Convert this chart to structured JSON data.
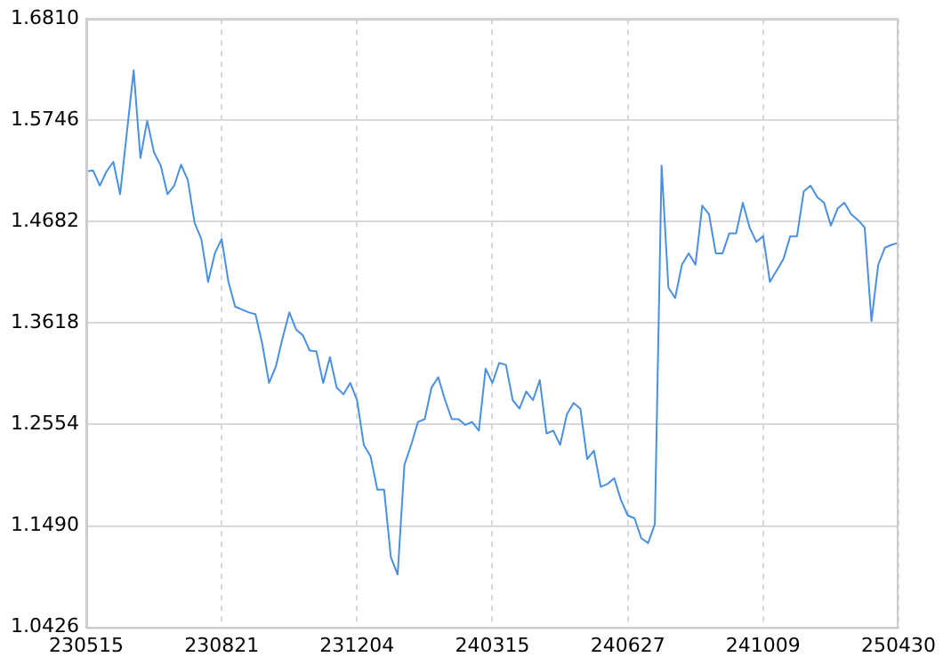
{
  "chart_data": {
    "type": "line",
    "categories": [
      "230515",
      null,
      null,
      null,
      null,
      null,
      null,
      null,
      null,
      null,
      null,
      null,
      null,
      null,
      null,
      null,
      null,
      null,
      null,
      null,
      "230821",
      null,
      null,
      null,
      null,
      null,
      null,
      null,
      null,
      null,
      null,
      null,
      null,
      null,
      null,
      null,
      null,
      null,
      null,
      null,
      "231204",
      null,
      null,
      null,
      null,
      null,
      null,
      null,
      null,
      null,
      null,
      null,
      null,
      null,
      null,
      null,
      null,
      null,
      null,
      null,
      "240315",
      null,
      null,
      null,
      null,
      null,
      null,
      null,
      null,
      null,
      null,
      null,
      null,
      null,
      null,
      null,
      null,
      null,
      null,
      null,
      "240627",
      null,
      null,
      null,
      null,
      null,
      null,
      null,
      null,
      null,
      null,
      null,
      null,
      null,
      null,
      null,
      null,
      null,
      null,
      null,
      "241009",
      null,
      null,
      null,
      null,
      null,
      null,
      null,
      null,
      null,
      null,
      null,
      null,
      null,
      null,
      null,
      null,
      null,
      null,
      null,
      "250430"
    ],
    "series": [
      {
        "color": "#4a90e2",
        "values": [
          1.521,
          1.522,
          1.506,
          1.521,
          1.531,
          1.497,
          1.562,
          1.627,
          1.535,
          1.574,
          1.541,
          1.527,
          1.497,
          1.506,
          1.528,
          1.512,
          1.467,
          1.45,
          1.405,
          1.435,
          1.45,
          1.405,
          1.379,
          1.376,
          1.373,
          1.371,
          1.34,
          1.299,
          1.316,
          1.346,
          1.373,
          1.355,
          1.349,
          1.333,
          1.332,
          1.299,
          1.326,
          1.294,
          1.287,
          1.299,
          1.281,
          1.234,
          1.222,
          1.187,
          1.187,
          1.116,
          1.098,
          1.213,
          1.234,
          1.258,
          1.261,
          1.294,
          1.305,
          1.281,
          1.261,
          1.261,
          1.255,
          1.258,
          1.249,
          1.314,
          1.299,
          1.32,
          1.318,
          1.281,
          1.272,
          1.29,
          1.281,
          1.302,
          1.246,
          1.249,
          1.234,
          1.266,
          1.278,
          1.272,
          1.219,
          1.228,
          1.19,
          1.193,
          1.199,
          1.176,
          1.16,
          1.157,
          1.136,
          1.131,
          1.151,
          1.527,
          1.399,
          1.388,
          1.423,
          1.435,
          1.423,
          1.485,
          1.476,
          1.435,
          1.435,
          1.456,
          1.456,
          1.488,
          1.462,
          1.447,
          1.453,
          1.405,
          1.417,
          1.429,
          1.453,
          1.453,
          1.5,
          1.506,
          1.494,
          1.488,
          1.464,
          1.482,
          1.488,
          1.476,
          1.47,
          1.462,
          1.364,
          1.423,
          1.441,
          1.444,
          1.446
        ]
      }
    ],
    "ylim": [
      1.0426,
      1.681
    ],
    "yticks": [
      {
        "value": 1.0426,
        "label": "1.0426"
      },
      {
        "value": 1.149,
        "label": "1.1490"
      },
      {
        "value": 1.2554,
        "label": "1.2554"
      },
      {
        "value": 1.3618,
        "label": "1.3618"
      },
      {
        "value": 1.4682,
        "label": "1.4682"
      },
      {
        "value": 1.5746,
        "label": "1.5746"
      },
      {
        "value": 1.681,
        "label": "1.6810"
      }
    ],
    "grid": true
  }
}
